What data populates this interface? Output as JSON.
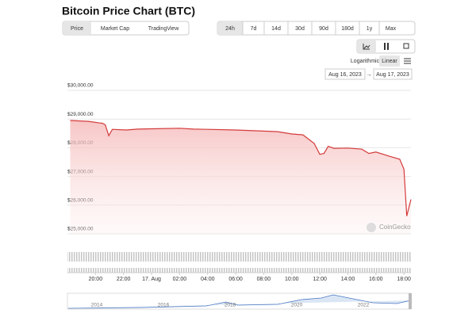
{
  "header": {
    "title": "Bitcoin Price Chart (BTC)"
  },
  "view_tabs": [
    "Price",
    "Market Cap",
    "TradingView"
  ],
  "range_buttons": [
    "24h",
    "7d",
    "14d",
    "30d",
    "90d",
    "180d",
    "1y",
    "Max"
  ],
  "scale_toggle": [
    "Logarithmic",
    "Linear"
  ],
  "date_range": {
    "from": "Aug 16, 2023",
    "to": "Aug 17, 2023"
  },
  "watermark": "CoinGecko",
  "navigator_years": [
    "2014",
    "2016",
    "2018",
    "2020",
    "2022"
  ],
  "chart_data": {
    "type": "line",
    "color": "#d43b3b",
    "grid": true,
    "x": [
      -5.8,
      -4.5,
      -3.5,
      -3.3,
      -3.05,
      -2.8,
      -1.8,
      -1,
      0,
      2,
      3,
      4,
      6,
      8,
      9,
      10,
      10.8,
      11.6,
      12.0,
      12.3,
      12.6,
      13,
      14,
      15,
      15.5,
      16,
      17,
      17.7,
      18.0,
      18.2,
      18.5
    ],
    "values": [
      28950,
      28920,
      28850,
      28800,
      28420,
      28640,
      28620,
      28650,
      28660,
      28680,
      28650,
      28640,
      28620,
      28580,
      28560,
      28480,
      28450,
      28150,
      27770,
      27800,
      28050,
      27980,
      27990,
      27950,
      27800,
      27850,
      27700,
      27600,
      27250,
      25620,
      26200
    ],
    "xlim": [
      -6,
      18.5
    ],
    "xticks": [
      {
        "value": -4,
        "label": "20:00"
      },
      {
        "value": -2,
        "label": "22:00"
      },
      {
        "value": 0,
        "label": "17. Aug"
      },
      {
        "value": 2,
        "label": "02:00"
      },
      {
        "value": 4,
        "label": "04:00"
      },
      {
        "value": 6,
        "label": "06:00"
      },
      {
        "value": 8,
        "label": "08:00"
      },
      {
        "value": 10,
        "label": "10:00"
      },
      {
        "value": 12,
        "label": "12:00"
      },
      {
        "value": 14,
        "label": "14:00"
      },
      {
        "value": 16,
        "label": "16:00"
      },
      {
        "value": 18,
        "label": "18:00"
      }
    ],
    "ylim": [
      25000,
      30000
    ],
    "yticks": [
      {
        "value": 25000,
        "label": "$25,000.00"
      },
      {
        "value": 26000,
        "label": "$26,000.00"
      },
      {
        "value": 27000,
        "label": "$27,000.00"
      },
      {
        "value": 28000,
        "label": "$28,000.00"
      },
      {
        "value": 29000,
        "label": "$29,000.00"
      },
      {
        "value": 30000,
        "label": "$30,000.00"
      }
    ]
  }
}
